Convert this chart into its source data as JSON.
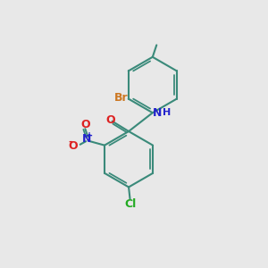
{
  "background_color": "#e8e8e8",
  "bond_color": "#3a8a7a",
  "atom_colors": {
    "C": "#3a8a7a",
    "N": "#2222cc",
    "O": "#dd2222",
    "Br": "#cc7722",
    "Cl": "#22aa22",
    "H": "#2222cc"
  },
  "figsize": [
    3.0,
    3.0
  ],
  "dpi": 100
}
